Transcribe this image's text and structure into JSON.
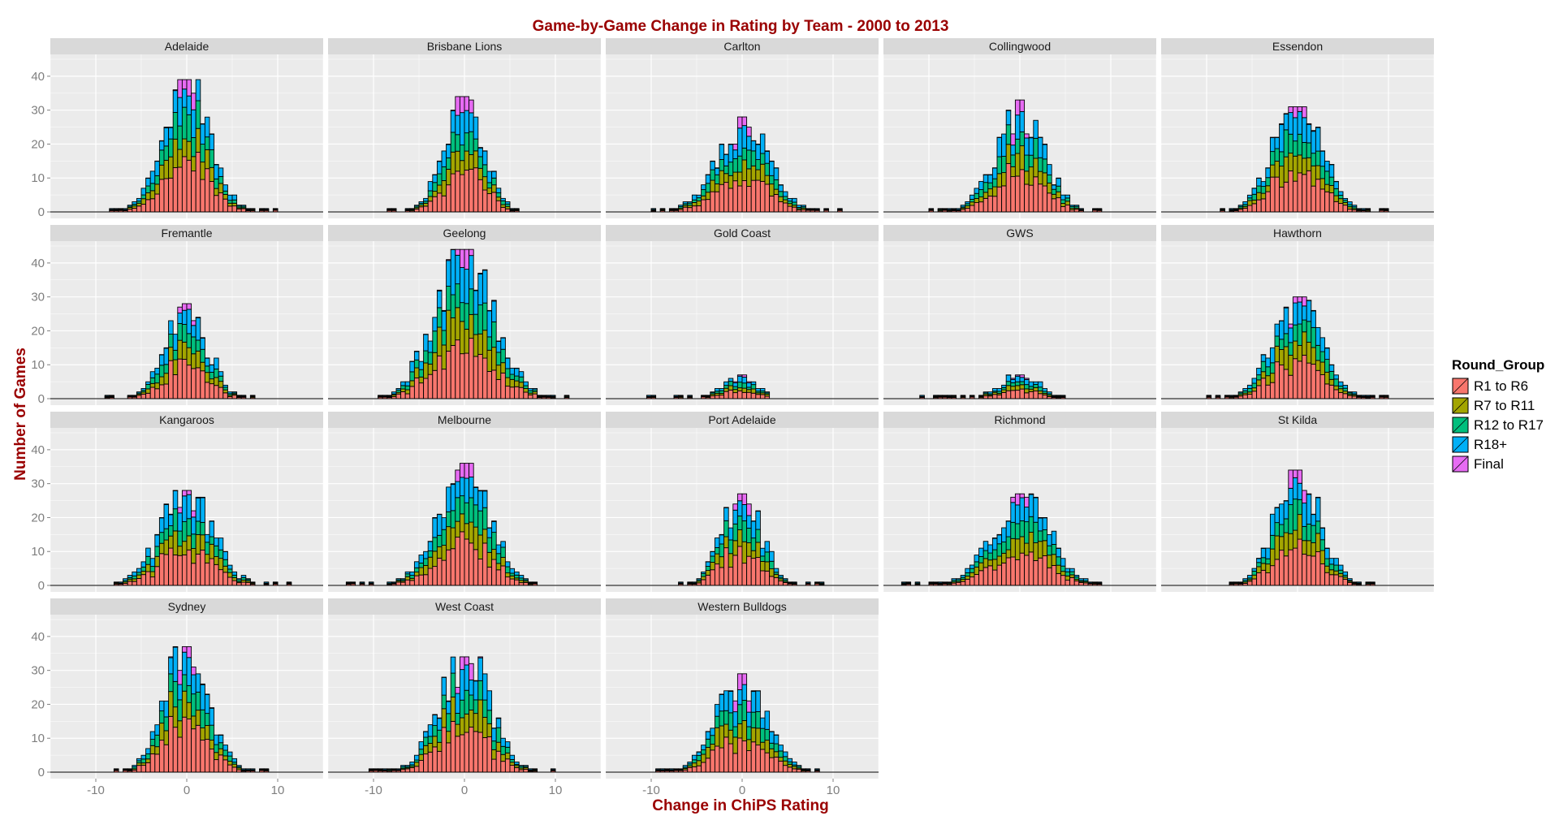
{
  "chart_data": {
    "type": "bar",
    "subtype": "faceted stacked histogram",
    "title": "Game-by-Game Change in Rating by Team - 2000 to 2013",
    "xlabel": "Change in ChiPS Rating",
    "ylabel": "Number of Games",
    "xlim": [
      -15,
      15
    ],
    "ylim": [
      0,
      45
    ],
    "xticks": [
      -10,
      0,
      10
    ],
    "yticks": [
      0,
      10,
      20,
      30,
      40
    ],
    "xtick_labels": [
      "-10",
      "0",
      "10"
    ],
    "ytick_labels": [
      "0",
      "10",
      "20",
      "30",
      "40"
    ],
    "bin_width": 0.5,
    "bin_start": -15,
    "grid": true,
    "legend": {
      "title": "Round_Group",
      "position": "right",
      "entries": [
        "R1 to R6",
        "R7 to R11",
        "R12 to R17",
        "R18+",
        "Final"
      ]
    },
    "series": [
      {
        "name": "R1 to R6",
        "color": "#F8766D"
      },
      {
        "name": "R7 to R11",
        "color": "#A3A500"
      },
      {
        "name": "R12 to R17",
        "color": "#00BF7D"
      },
      {
        "name": "R18+",
        "color": "#00B0F6"
      },
      {
        "name": "Final",
        "color": "#E76BF3"
      }
    ],
    "facets": [
      {
        "team": "Adelaide",
        "range": [
          -9,
          10
        ],
        "peak": 39
      },
      {
        "team": "Brisbane Lions",
        "range": [
          -9,
          7
        ],
        "peak": 34
      },
      {
        "team": "Carlton",
        "range": [
          -10,
          11
        ],
        "peak": 28
      },
      {
        "team": "Collingwood",
        "range": [
          -10,
          9
        ],
        "peak": 33
      },
      {
        "team": "Essendon",
        "range": [
          -9,
          11
        ],
        "peak": 31
      },
      {
        "team": "Fremantle",
        "range": [
          -9,
          8
        ],
        "peak": 28
      },
      {
        "team": "Geelong",
        "range": [
          -10,
          14
        ],
        "peak": 44
      },
      {
        "team": "Gold Coast",
        "range": [
          -11,
          3
        ],
        "peak": 7
      },
      {
        "team": "GWS",
        "range": [
          -11,
          5
        ],
        "peak": 7
      },
      {
        "team": "Hawthorn",
        "range": [
          -10,
          10
        ],
        "peak": 30
      },
      {
        "team": "Kangaroos",
        "range": [
          -9,
          12
        ],
        "peak": 28
      },
      {
        "team": "Melbourne",
        "range": [
          -13,
          8
        ],
        "peak": 36
      },
      {
        "team": "Port Adelaide",
        "range": [
          -7,
          9
        ],
        "peak": 27
      },
      {
        "team": "Richmond",
        "range": [
          -14,
          9
        ],
        "peak": 27
      },
      {
        "team": "St Kilda",
        "range": [
          -9,
          9
        ],
        "peak": 34
      },
      {
        "team": "Sydney",
        "range": [
          -8,
          10
        ],
        "peak": 37
      },
      {
        "team": "West Coast",
        "range": [
          -11,
          10
        ],
        "peak": 34
      },
      {
        "team": "Western Bulldogs",
        "range": [
          -10,
          10
        ],
        "peak": 29
      }
    ]
  }
}
